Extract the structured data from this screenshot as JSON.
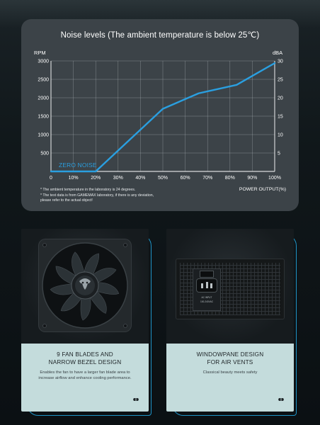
{
  "chart_data": {
    "type": "line",
    "title": "Noise levels (The ambient temperature is below 25℃)",
    "y_left_label": "RPM",
    "y_right_label": "dBA",
    "xlabel": "POWER OUTPUT(%)",
    "x_ticks": [
      "0",
      "10%",
      "20%",
      "30%",
      "40%",
      "50%",
      "60%",
      "70%",
      "80%",
      "90%",
      "100%"
    ],
    "y_left_ticks": [
      "500",
      "1000",
      "1500",
      "2000",
      "2500",
      "3000"
    ],
    "y_right_ticks": [
      "5",
      "10",
      "15",
      "20",
      "25",
      "30"
    ],
    "xlim": [
      0,
      100
    ],
    "ylim_left": [
      0,
      3000
    ],
    "ylim_right": [
      0,
      30
    ],
    "grid": true,
    "annotation": "ZERO NOISE",
    "series": [
      {
        "x": [
          0,
          20,
          50,
          66,
          83,
          100
        ],
        "values": [
          0,
          0,
          1700,
          2120,
          2350,
          2940
        ],
        "color": "#2a9fe0"
      }
    ],
    "footnotes": [
      "* The ambient temperature in the laboratory is 24 degrees.",
      "* The test data is from GAMEMAX laboratory, if there is any deviation,",
      "  please refer to the actual object!"
    ]
  },
  "features": [
    {
      "title": "9 FAN BLADES AND\nNARROW BEZEL DESIGN",
      "description": "Enables the fan to have a larger fan blade area to increase airflow and enhance cooling performance.",
      "image_icon": "fan-icon"
    },
    {
      "title": "WINDOWPANE DESIGN\nFOR AIR VENTS",
      "description": "Classical beauty meets safety",
      "image_icon": "psu-back-panel-icon",
      "plate_labels": [
        "AC INPUT",
        "100-240VAC"
      ]
    }
  ],
  "colors": {
    "accent_blue": "#2a9fe0",
    "card_bg": "#3c4348",
    "caption_bg": "#c4dcdc",
    "outline_blue": "#1e93c6"
  }
}
